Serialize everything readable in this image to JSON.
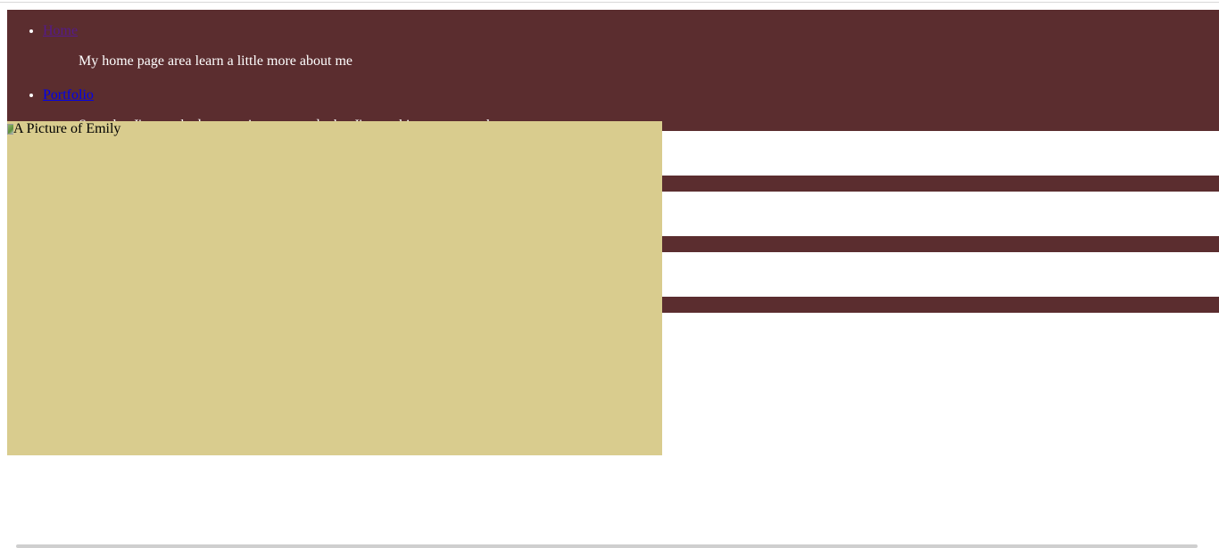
{
  "nav": {
    "items": [
      {
        "label": "Home",
        "description": "My home page area learn a little more about me"
      },
      {
        "label": "Portfolio",
        "description": "See what I've worked on, my interests and what I'm working on currently"
      }
    ]
  },
  "photo": {
    "alt": "A Picture of Emily"
  },
  "colors": {
    "band": "#5b2d2f",
    "photo_background": "#d9cc8e",
    "visited_link": "#551a8b",
    "link": "#0000ee"
  },
  "icons": {
    "broken_image": "broken-image-icon"
  }
}
